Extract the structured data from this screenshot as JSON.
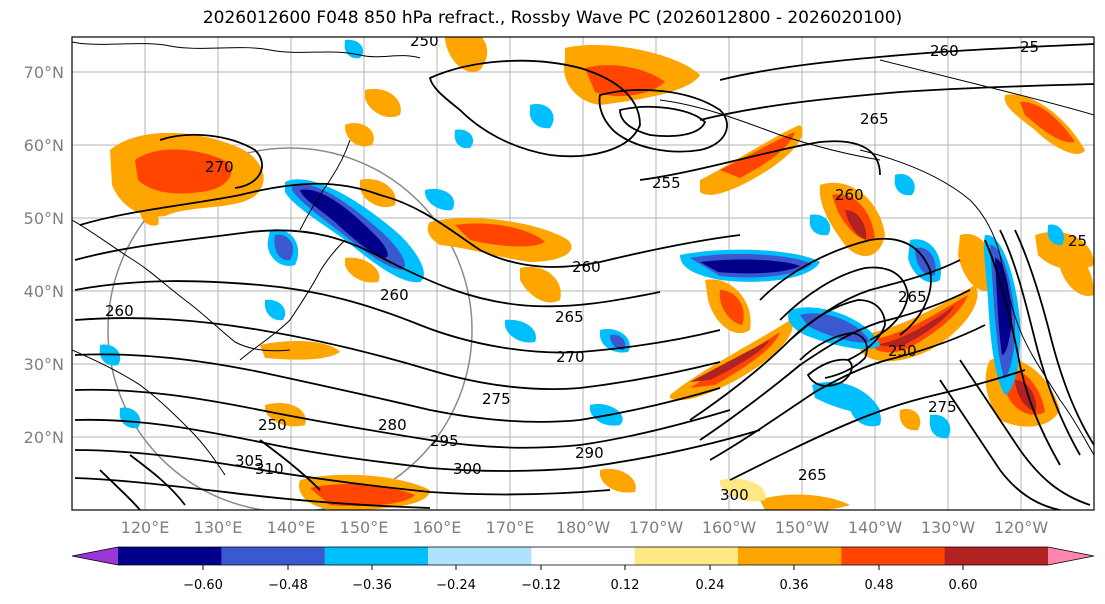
{
  "title": "2026012600 F048 850 hPa refract., Rossby Wave PC (2026012800 - 2026020100)",
  "map": {
    "lat_labels": [
      "70°N",
      "60°N",
      "50°N",
      "40°N",
      "30°N",
      "20°N"
    ],
    "lon_labels": [
      "120°E",
      "130°E",
      "140°E",
      "150°E",
      "160°E",
      "170°E",
      "180°W",
      "170°W",
      "160°W",
      "150°W",
      "140°W",
      "130°W",
      "120°W"
    ],
    "contour_labels": [
      "250",
      "260",
      "265",
      "255",
      "270",
      "265",
      "260",
      "260",
      "260",
      "270",
      "275",
      "280",
      "295",
      "300",
      "290",
      "300",
      "305",
      "310",
      "265",
      "250",
      "265",
      "275",
      "260",
      "250",
      "25",
      "25"
    ]
  },
  "colorbar": {
    "colors": [
      "#9b36d6",
      "#00008b",
      "#3a58d0",
      "#00bfff",
      "#b0e2ff",
      "#ffffff",
      "#ffe884",
      "#ffa500",
      "#ff4500",
      "#b22222",
      "#ff85b0"
    ],
    "ticks": [
      "−0.60",
      "−0.48",
      "−0.36",
      "−0.24",
      "−0.12",
      "0.12",
      "0.24",
      "0.36",
      "0.48",
      "0.60"
    ]
  }
}
